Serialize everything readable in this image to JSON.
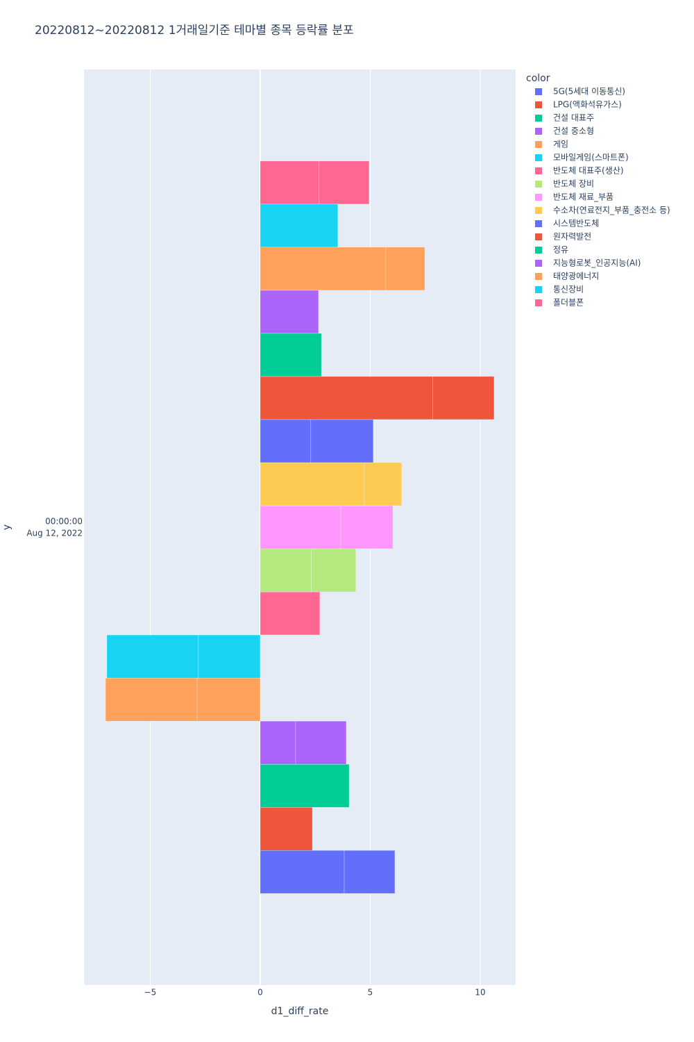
{
  "chart_data": {
    "type": "bar",
    "orientation": "h",
    "title": "20220812~20220812 1거래일기준 테마별 종목 등락률 분포",
    "xlabel": "d1_diff_rate",
    "ylabel": "y",
    "category": [
      "00:00:00",
      "Aug 12, 2022"
    ],
    "legend_title": "color",
    "xlim": [
      -8.01,
      11.61
    ],
    "xticks": [
      {
        "value": -5,
        "label": "−5"
      },
      0,
      5,
      10
    ],
    "grid": true,
    "series": [
      {
        "name": "5G(5세대 이동통신)",
        "color": "#636efa",
        "values": [
          3.82,
          2.3
        ]
      },
      {
        "name": "LPG(액화석유가스)",
        "color": "#ef553b",
        "values": [
          2.37
        ]
      },
      {
        "name": "건설 대표주",
        "color": "#00cc96",
        "values": [
          4.04
        ]
      },
      {
        "name": "건설 중소형",
        "color": "#ab63fa",
        "values": [
          1.61,
          2.3
        ]
      },
      {
        "name": "게임",
        "color": "#ffa15a",
        "values": [
          -2.87,
          -4.16
        ]
      },
      {
        "name": "모바일게임(스마트폰)",
        "color": "#19d3f3",
        "values": [
          -2.81,
          -4.16
        ]
      },
      {
        "name": "반도체 대표주(생산)",
        "color": "#ff6692",
        "values": [
          2.71
        ]
      },
      {
        "name": "반도체 장비",
        "color": "#b6e880",
        "values": [
          2.33,
          2.02
        ]
      },
      {
        "name": "반도체 재료_부품",
        "color": "#ff97ff",
        "values": [
          3.66,
          2.37
        ]
      },
      {
        "name": "수소차(연료전지_부품_충전소 등)",
        "color": "#fecb52",
        "values": [
          4.73,
          1.7
        ]
      },
      {
        "name": "시스템반도체",
        "color": "#636efa",
        "values": [
          2.3,
          2.84
        ]
      },
      {
        "name": "원자력발전",
        "color": "#ef553b",
        "values": [
          7.85,
          2.78
        ]
      },
      {
        "name": "정유",
        "color": "#00cc96",
        "values": [
          2.78
        ]
      },
      {
        "name": "지능형로봇_인공지능(AI)",
        "color": "#ab63fa",
        "values": [
          2.65
        ]
      },
      {
        "name": "태양광에너지",
        "color": "#ffa15a",
        "values": [
          5.71,
          1.77
        ]
      },
      {
        "name": "통신장비",
        "color": "#19d3f3",
        "values": [
          3.53
        ]
      },
      {
        "name": "폴더블폰",
        "color": "#ff6692",
        "values": [
          2.68,
          2.27
        ]
      }
    ]
  }
}
